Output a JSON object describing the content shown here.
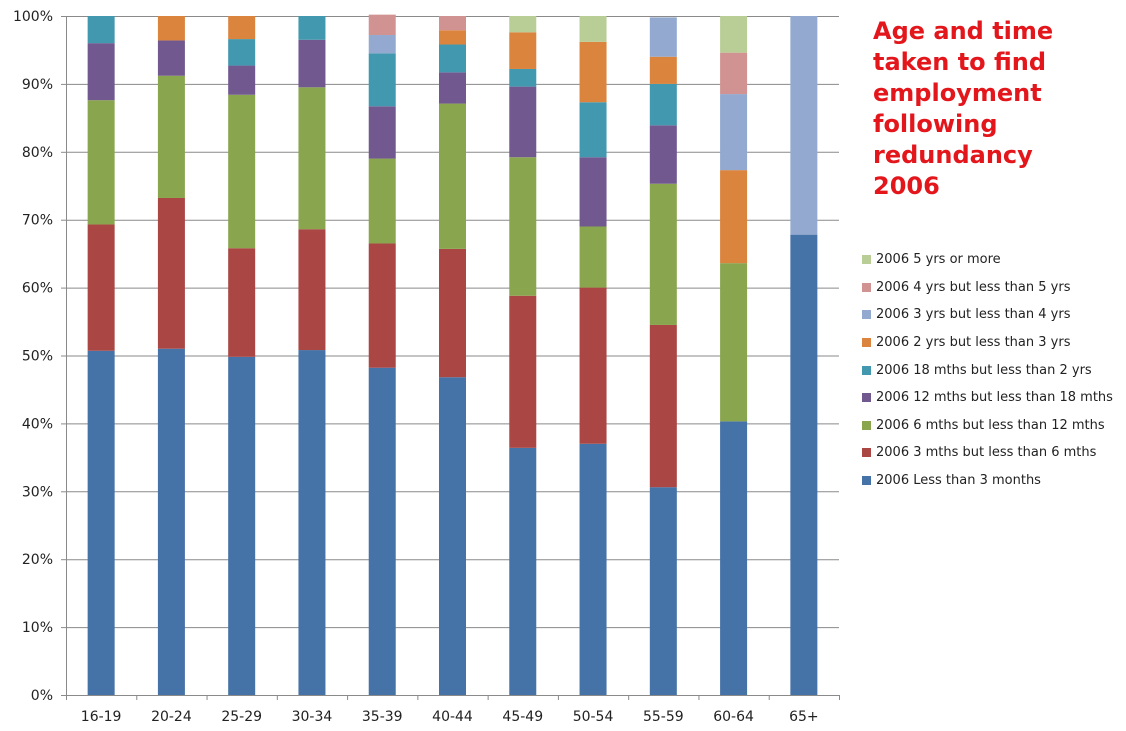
{
  "chart_data": {
    "type": "bar",
    "stacked": true,
    "title_lines": [
      "Age and time",
      "taken to find",
      "employment",
      "following",
      "redundancy",
      "2006"
    ],
    "categories": [
      "16-19",
      "20-24",
      "25-29",
      "30-34",
      "35-39",
      "40-44",
      "45-49",
      "50-54",
      "55-59",
      "60-64",
      "65+"
    ],
    "y_ticks": [
      "0%",
      "10%",
      "20%",
      "30%",
      "40%",
      "50%",
      "60%",
      "70%",
      "80%",
      "90%",
      "100%"
    ],
    "ylim": [
      0,
      100
    ],
    "grid": true,
    "legend_position": "right",
    "series": [
      {
        "name": "2006 Less than 3 months",
        "color": "#4572a7",
        "values": [
          50.7,
          51.0,
          49.8,
          50.8,
          48.2,
          46.8,
          36.4,
          37.0,
          30.6,
          40.3,
          67.8
        ]
      },
      {
        "name": "2006 3 mths but less than 6 mths",
        "color": "#aa4643",
        "values": [
          18.6,
          22.2,
          16.0,
          17.8,
          18.3,
          18.9,
          22.4,
          23.0,
          23.9,
          0,
          0
        ]
      },
      {
        "name": "2006 6 mths but less than 12 mths",
        "color": "#89a54e",
        "values": [
          18.3,
          18.0,
          22.6,
          20.9,
          12.5,
          21.4,
          20.4,
          9.0,
          20.8,
          23.3,
          0
        ]
      },
      {
        "name": "2006 12 mths but less than 18 mths",
        "color": "#71588f",
        "values": [
          8.4,
          5.2,
          4.3,
          7.0,
          7.7,
          4.6,
          10.4,
          10.2,
          8.6,
          0,
          0
        ]
      },
      {
        "name": "2006 18 mths but less than 2 yrs",
        "color": "#4198af",
        "values": [
          4.0,
          0,
          3.9,
          3.5,
          7.8,
          4.1,
          2.6,
          8.1,
          6.1,
          0,
          0
        ]
      },
      {
        "name": "2006 2 yrs but less than 3 yrs",
        "color": "#db843d",
        "values": [
          0,
          3.6,
          3.4,
          0,
          0,
          2.1,
          5.4,
          8.9,
          4.0,
          13.7,
          0
        ]
      },
      {
        "name": "2006 3 yrs but less than 4 yrs",
        "color": "#93a9cf",
        "values": [
          0,
          0,
          0,
          0,
          2.7,
          0,
          0,
          0,
          5.8,
          11.2,
          32.2
        ]
      },
      {
        "name": "2006 4 yrs but less than 5 yrs",
        "color": "#d19392",
        "values": [
          0,
          0,
          0,
          0,
          3.0,
          2.1,
          0,
          0,
          0,
          6.1,
          0
        ]
      },
      {
        "name": "2006 5 yrs or more",
        "color": "#b9cd96",
        "values": [
          0,
          0,
          0,
          0,
          0,
          0,
          2.4,
          3.8,
          0,
          5.4,
          0
        ]
      }
    ]
  }
}
